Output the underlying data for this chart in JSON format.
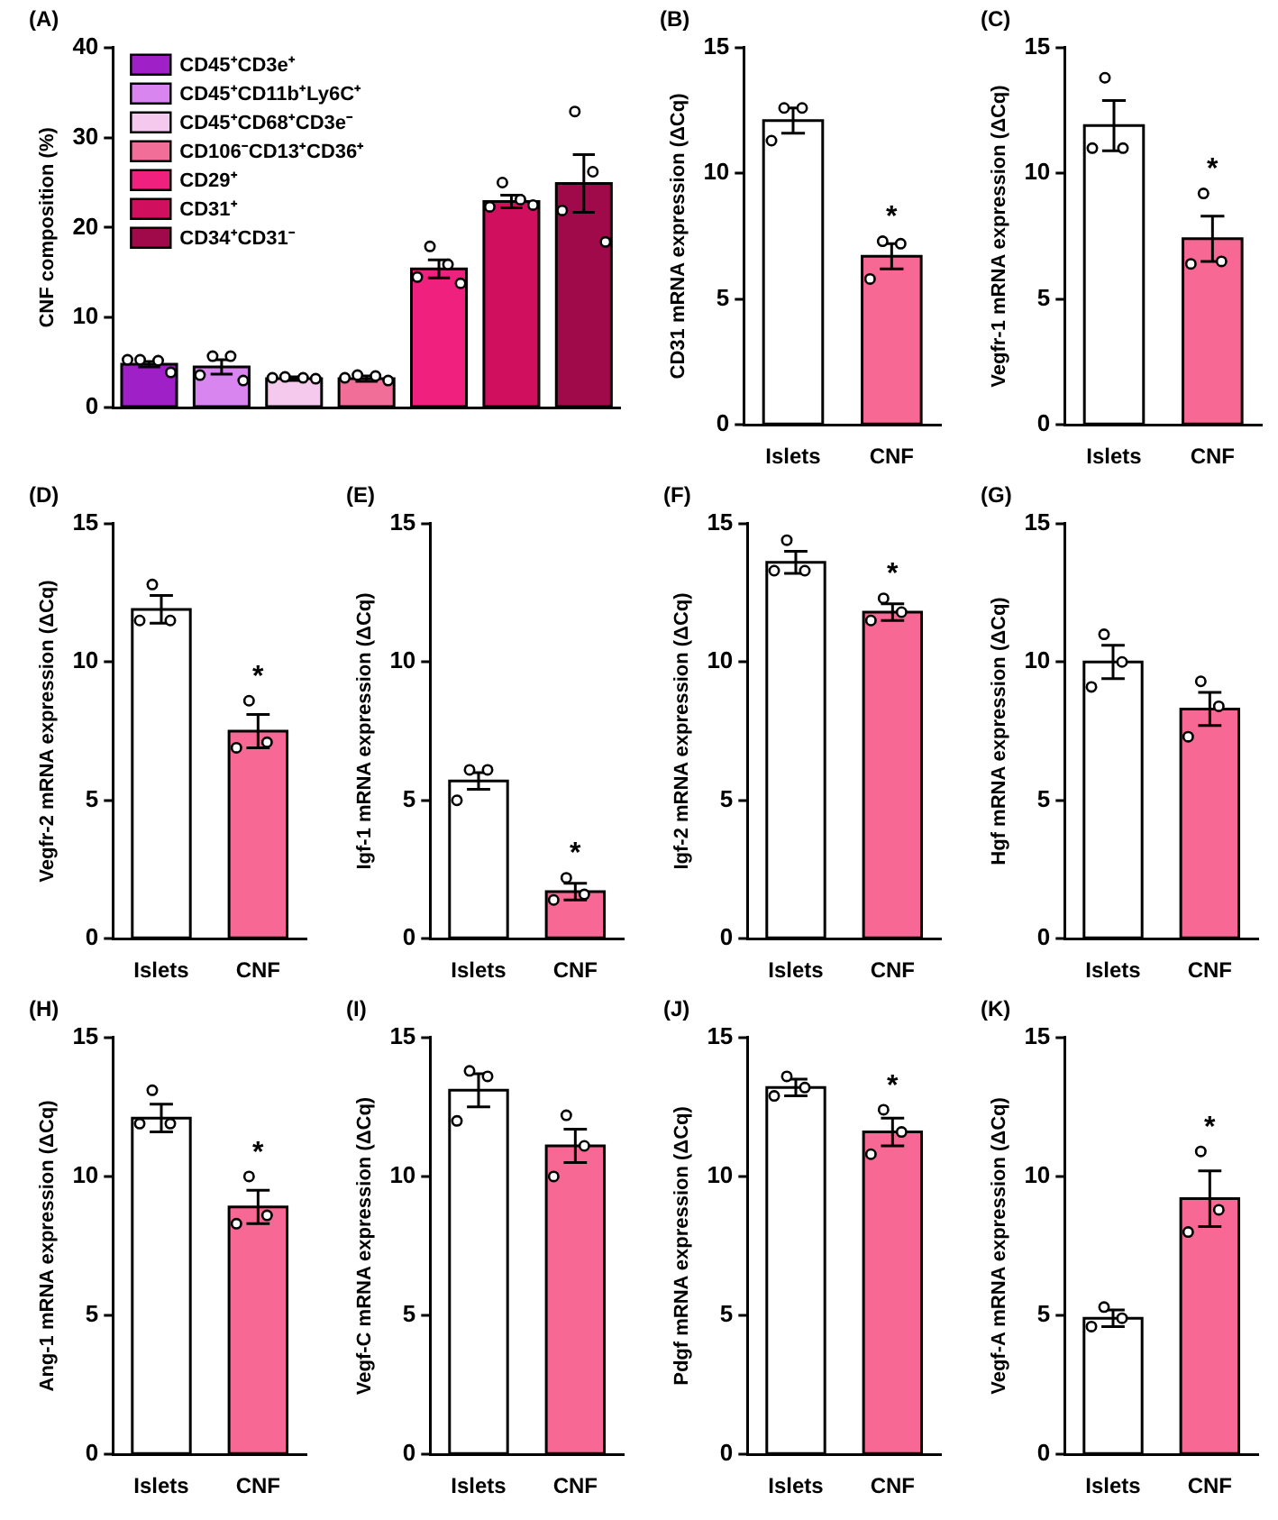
{
  "chart_data": [
    {
      "type": "bar",
      "title": "(A)",
      "ylabel": "CNF composition (%)",
      "categories": [
        null,
        null,
        null,
        null,
        null,
        null,
        null
      ],
      "tick_labels": "y",
      "legend": "top left",
      "ylim": [
        0,
        40
      ],
      "yticks": [
        0,
        10,
        20,
        30,
        40
      ],
      "series": [
        {
          "name": "CD45⁺CD3e⁺",
          "color": "#a020c8",
          "values": [
            4.8,
            null,
            null,
            null,
            null,
            null,
            null
          ],
          "errors": [
            0.3,
            null,
            null,
            null,
            null,
            null,
            null
          ]
        },
        {
          "name": "CD45⁺CD11b⁺Ly6C⁺",
          "color": "#d985f0",
          "values": [
            null,
            4.5,
            null,
            null,
            null,
            null,
            null
          ],
          "errors": [
            null,
            0.8,
            null,
            null,
            null,
            null,
            null
          ]
        },
        {
          "name": "CD45⁺CD68⁺CD3e⁻",
          "color": "#f5c8ee",
          "values": [
            null,
            null,
            3.2,
            null,
            null,
            null,
            null
          ],
          "errors": [
            null,
            null,
            0.2,
            null,
            null,
            null,
            null
          ]
        },
        {
          "name": "CD106⁻CD13⁺CD36⁺",
          "color": "#f06e98",
          "values": [
            null,
            null,
            null,
            3.2,
            null,
            null,
            null
          ],
          "errors": [
            null,
            null,
            null,
            0.3,
            null,
            null,
            null
          ]
        },
        {
          "name": "CD29⁺",
          "color": "#f0207f",
          "values": [
            null,
            null,
            null,
            null,
            15.4,
            null,
            null
          ],
          "errors": [
            null,
            null,
            null,
            null,
            1.0,
            null,
            null
          ]
        },
        {
          "name": "CD31⁺",
          "color": "#d0105f",
          "values": [
            null,
            null,
            null,
            null,
            null,
            22.9,
            null
          ],
          "errors": [
            null,
            null,
            null,
            null,
            null,
            0.7,
            null
          ]
        },
        {
          "name": "CD34⁺CD31⁻",
          "color": "#a00a4a",
          "values": [
            null,
            null,
            null,
            null,
            null,
            null,
            24.9
          ],
          "errors": [
            null,
            null,
            null,
            null,
            null,
            null,
            3.2
          ]
        },
        {
          "type": "scatter",
          "color": "#ffffff",
          "values": [
            5.3,
            5.7,
            3.4,
            3.6,
            17.9,
            25.0,
            32.9
          ]
        },
        {
          "type": "scatter",
          "color": "#ffffff",
          "values": [
            5.2,
            5.7,
            3.3,
            3.5,
            15.9,
            23.1,
            26.2
          ]
        },
        {
          "type": "scatter",
          "color": "#ffffff",
          "values": [
            5.3,
            3.6,
            3.3,
            3.3,
            14.5,
            22.3,
            21.9
          ]
        },
        {
          "type": "scatter",
          "color": "#ffffff",
          "values": [
            3.9,
            3.0,
            3.2,
            3.0,
            13.8,
            22.5,
            18.4
          ]
        }
      ]
    },
    {
      "type": "bar",
      "title": "(B)",
      "ylabel": "CD31 mRNA expression (ΔCq)",
      "categories": [
        "Islets",
        "CNF"
      ],
      "ylim": [
        0,
        15
      ],
      "yticks": [
        0,
        5,
        10,
        15
      ],
      "annotations": [
        "*"
      ],
      "series": [
        {
          "colors": [
            "#ffffff",
            "#f76894"
          ],
          "values": [
            12.1,
            6.7
          ],
          "errors": [
            0.5,
            0.5
          ]
        },
        {
          "type": "scatter",
          "color": "#ffffff",
          "values": [
            12.6,
            7.3
          ]
        },
        {
          "type": "scatter",
          "color": "#ffffff",
          "values": [
            12.6,
            7.2
          ]
        },
        {
          "type": "scatter",
          "color": "#ffffff",
          "values": [
            11.3,
            5.8
          ]
        }
      ]
    },
    {
      "type": "bar",
      "title": "(C)",
      "ylabel": "Vegfr-1 mRNA expression (ΔCq)",
      "categories": [
        "Islets",
        "CNF"
      ],
      "ylim": [
        0,
        15
      ],
      "yticks": [
        0,
        5,
        10,
        15
      ],
      "annotations": [
        "*"
      ],
      "series": [
        {
          "colors": [
            "#ffffff",
            "#f76894"
          ],
          "values": [
            11.9,
            7.4
          ],
          "errors": [
            1.0,
            0.9
          ]
        },
        {
          "type": "scatter",
          "color": "#ffffff",
          "values": [
            13.8,
            9.2
          ]
        },
        {
          "type": "scatter",
          "color": "#ffffff",
          "values": [
            11.0,
            6.5
          ]
        },
        {
          "type": "scatter",
          "color": "#ffffff",
          "values": [
            11.0,
            6.4
          ]
        }
      ]
    },
    {
      "type": "bar",
      "title": "(D)",
      "ylabel": "Vegfr-2 mRNA expression (ΔCq)",
      "categories": [
        "Islets",
        "CNF"
      ],
      "ylim": [
        0,
        15
      ],
      "yticks": [
        0,
        5,
        10,
        15
      ],
      "annotations": [
        "*"
      ],
      "series": [
        {
          "colors": [
            "#ffffff",
            "#f76894"
          ],
          "values": [
            11.9,
            7.5
          ],
          "errors": [
            0.5,
            0.6
          ]
        },
        {
          "type": "scatter",
          "color": "#ffffff",
          "values": [
            12.8,
            8.6
          ]
        },
        {
          "type": "scatter",
          "color": "#ffffff",
          "values": [
            11.5,
            7.1
          ]
        },
        {
          "type": "scatter",
          "color": "#ffffff",
          "values": [
            11.5,
            6.9
          ]
        }
      ]
    },
    {
      "type": "bar",
      "title": "(E)",
      "ylabel": "Igf-1 mRNA expression (ΔCq)",
      "categories": [
        "Islets",
        "CNF"
      ],
      "ylim": [
        0,
        15
      ],
      "yticks": [
        0,
        5,
        10,
        15
      ],
      "annotations": [
        "*"
      ],
      "series": [
        {
          "colors": [
            "#ffffff",
            "#f76894"
          ],
          "values": [
            5.7,
            1.7
          ],
          "errors": [
            0.3,
            0.3
          ]
        },
        {
          "type": "scatter",
          "color": "#ffffff",
          "values": [
            6.1,
            2.2
          ]
        },
        {
          "type": "scatter",
          "color": "#ffffff",
          "values": [
            6.1,
            1.6
          ]
        },
        {
          "type": "scatter",
          "color": "#ffffff",
          "values": [
            5.0,
            1.4
          ]
        }
      ]
    },
    {
      "type": "bar",
      "title": "(F)",
      "ylabel": "Igf-2 mRNA expression (ΔCq)",
      "categories": [
        "Islets",
        "CNF"
      ],
      "ylim": [
        0,
        15
      ],
      "yticks": [
        0,
        5,
        10,
        15
      ],
      "annotations": [
        "*"
      ],
      "series": [
        {
          "colors": [
            "#ffffff",
            "#f76894"
          ],
          "values": [
            13.6,
            11.8
          ],
          "errors": [
            0.4,
            0.3
          ]
        },
        {
          "type": "scatter",
          "color": "#ffffff",
          "values": [
            14.4,
            12.3
          ]
        },
        {
          "type": "scatter",
          "color": "#ffffff",
          "values": [
            13.3,
            11.8
          ]
        },
        {
          "type": "scatter",
          "color": "#ffffff",
          "values": [
            13.3,
            11.5
          ]
        }
      ]
    },
    {
      "type": "bar",
      "title": "(G)",
      "ylabel": "Hgf mRNA expression (ΔCq)",
      "categories": [
        "Islets",
        "CNF"
      ],
      "ylim": [
        0,
        15
      ],
      "yticks": [
        0,
        5,
        10,
        15
      ],
      "series": [
        {
          "colors": [
            "#ffffff",
            "#f76894"
          ],
          "values": [
            10.0,
            8.3
          ],
          "errors": [
            0.6,
            0.6
          ]
        },
        {
          "type": "scatter",
          "color": "#ffffff",
          "values": [
            11.0,
            9.3
          ]
        },
        {
          "type": "scatter",
          "color": "#ffffff",
          "values": [
            10.0,
            8.4
          ]
        },
        {
          "type": "scatter",
          "color": "#ffffff",
          "values": [
            9.1,
            7.3
          ]
        }
      ]
    },
    {
      "type": "bar",
      "title": "(H)",
      "ylabel": "Ang-1 mRNA expression (ΔCq)",
      "categories": [
        "Islets",
        "CNF"
      ],
      "ylim": [
        0,
        15
      ],
      "yticks": [
        0,
        5,
        10,
        15
      ],
      "annotations": [
        "*"
      ],
      "series": [
        {
          "colors": [
            "#ffffff",
            "#f76894"
          ],
          "values": [
            12.1,
            8.9
          ],
          "errors": [
            0.5,
            0.6
          ]
        },
        {
          "type": "scatter",
          "color": "#ffffff",
          "values": [
            13.1,
            10.0
          ]
        },
        {
          "type": "scatter",
          "color": "#ffffff",
          "values": [
            11.9,
            8.6
          ]
        },
        {
          "type": "scatter",
          "color": "#ffffff",
          "values": [
            11.9,
            8.3
          ]
        }
      ]
    },
    {
      "type": "bar",
      "title": "(I)",
      "ylabel": "Vegf-C mRNA expression (ΔCq)",
      "categories": [
        "Islets",
        "CNF"
      ],
      "ylim": [
        0,
        15
      ],
      "yticks": [
        0,
        5,
        10,
        15
      ],
      "series": [
        {
          "colors": [
            "#ffffff",
            "#f76894"
          ],
          "values": [
            13.1,
            11.1
          ],
          "errors": [
            0.6,
            0.6
          ]
        },
        {
          "type": "scatter",
          "color": "#ffffff",
          "values": [
            13.8,
            12.2
          ]
        },
        {
          "type": "scatter",
          "color": "#ffffff",
          "values": [
            13.6,
            11.1
          ]
        },
        {
          "type": "scatter",
          "color": "#ffffff",
          "values": [
            12.0,
            10.0
          ]
        }
      ]
    },
    {
      "type": "bar",
      "title": "(J)",
      "ylabel": "Pdgf mRNA expression (ΔCq)",
      "categories": [
        "Islets",
        "CNF"
      ],
      "ylim": [
        0,
        15
      ],
      "yticks": [
        0,
        5,
        10,
        15
      ],
      "annotations": [
        "*"
      ],
      "series": [
        {
          "colors": [
            "#ffffff",
            "#f76894"
          ],
          "values": [
            13.2,
            11.6
          ],
          "errors": [
            0.3,
            0.5
          ]
        },
        {
          "type": "scatter",
          "color": "#ffffff",
          "values": [
            13.6,
            12.4
          ]
        },
        {
          "type": "scatter",
          "color": "#ffffff",
          "values": [
            13.2,
            11.6
          ]
        },
        {
          "type": "scatter",
          "color": "#ffffff",
          "values": [
            12.9,
            10.8
          ]
        }
      ]
    },
    {
      "type": "bar",
      "title": "(K)",
      "ylabel": "Vegf-A mRNA expression (ΔCq)",
      "categories": [
        "Islets",
        "CNF"
      ],
      "ylim": [
        0,
        15
      ],
      "yticks": [
        0,
        5,
        10,
        15
      ],
      "annotations": [
        "*"
      ],
      "series": [
        {
          "colors": [
            "#ffffff",
            "#f76894"
          ],
          "values": [
            4.9,
            9.2
          ],
          "errors": [
            0.3,
            1.0
          ]
        },
        {
          "type": "scatter",
          "color": "#ffffff",
          "values": [
            5.3,
            10.9
          ]
        },
        {
          "type": "scatter",
          "color": "#ffffff",
          "values": [
            4.9,
            8.8
          ]
        },
        {
          "type": "scatter",
          "color": "#ffffff",
          "values": [
            4.6,
            8.0
          ]
        }
      ]
    }
  ]
}
